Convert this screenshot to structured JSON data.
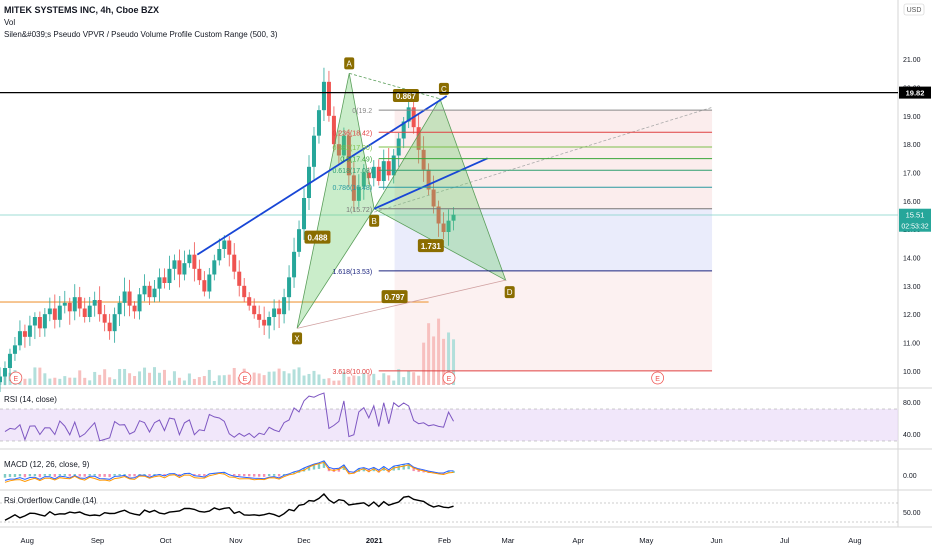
{
  "header": {
    "symbol_line": "MITEK SYSTEMS INC, 4h, Cboe BZX",
    "vol_label": "Vol",
    "indicator_line": "Silen&#039;s Pseudo VPVR / Pseudo Volume Profile Custom Range (500, 3)"
  },
  "currency_badge": "USD",
  "price_axis": {
    "ticks": [
      "21.00",
      "20.00",
      "19.00",
      "18.00",
      "17.00",
      "16.00",
      "15.00",
      "14.00",
      "13.00",
      "12.00",
      "11.00",
      "10.00"
    ],
    "last_price": "15.51",
    "countdown": "02:53:32",
    "level_badge": "19.82"
  },
  "time_axis": {
    "labels": [
      "Aug",
      "Sep",
      "Oct",
      "Nov",
      "Dec",
      "2021",
      "Feb",
      "Mar",
      "Apr",
      "May",
      "Jun",
      "Jul",
      "Aug"
    ]
  },
  "pattern_points": [
    "X",
    "A",
    "B",
    "C",
    "D"
  ],
  "ratio_labels": [
    "0.867",
    "0.488",
    "1.731",
    "0.797"
  ],
  "fib_labels": [
    "0(19.2",
    "0.236(18.42)",
    "0.382(17.90)",
    "0.5(17.49)",
    "0.618(17.08)",
    "0.786(16.48)",
    "1(15.72)",
    "1.618(13.53)",
    "3.618(10.00)"
  ],
  "earnings_marker": "E",
  "rsi": {
    "label": "RSI (14, close)",
    "ticks": [
      "80.00",
      "40.00"
    ]
  },
  "macd": {
    "label": "MACD (12, 26, close, 9)",
    "ticks": [
      "0.00"
    ]
  },
  "rsi_orderflow": {
    "label": "Rsi Orderflow Candle (14)",
    "ticks": [
      "50.00"
    ]
  },
  "colors": {
    "up": "#26a69a",
    "down": "#ef5350",
    "pattern_fill": "#66cc66",
    "trend_blue": "#1846d6",
    "rsi_band": "#e8d7f7",
    "price_badge": "#26a69a"
  },
  "chart_data": {
    "type": "candlestick",
    "title": "MITEK SYSTEMS INC, 4h, Cboe BZX",
    "ylabel": "USD",
    "ylim": [
      9.5,
      21.5
    ],
    "x_range": [
      "2020-07-20",
      "2021-08-20"
    ],
    "last_close": 15.51,
    "harmonic_pattern": {
      "points": [
        {
          "label": "X",
          "date": "2020-11-28",
          "price": 11.5
        },
        {
          "label": "A",
          "date": "2020-12-21",
          "price": 20.5
        },
        {
          "label": "B",
          "date": "2021-01-01",
          "price": 15.72
        },
        {
          "label": "C",
          "date": "2021-01-30",
          "price": 19.6
        },
        {
          "label": "D",
          "date": "2021-02-28",
          "price": 13.2
        }
      ],
      "ratios": [
        0.867,
        0.488,
        1.731,
        0.797
      ]
    },
    "fib_levels": [
      {
        "ratio": 0,
        "price": 19.2
      },
      {
        "ratio": 0.236,
        "price": 18.42
      },
      {
        "ratio": 0.382,
        "price": 17.9
      },
      {
        "ratio": 0.5,
        "price": 17.49
      },
      {
        "ratio": 0.618,
        "price": 17.08
      },
      {
        "ratio": 0.786,
        "price": 16.48
      },
      {
        "ratio": 1,
        "price": 15.72
      },
      {
        "ratio": 1.618,
        "price": 13.53
      },
      {
        "ratio": 3.618,
        "price": 10.0
      }
    ],
    "horizontal_levels": [
      19.82,
      12.4
    ],
    "closes": [
      9.8,
      10.1,
      10.6,
      10.9,
      11.4,
      11.2,
      11.6,
      11.9,
      11.5,
      12.0,
      12.2,
      11.8,
      12.3,
      12.4,
      12.1,
      12.6,
      12.2,
      11.9,
      12.3,
      12.5,
      12.0,
      11.7,
      11.4,
      12.0,
      12.4,
      12.8,
      12.3,
      12.1,
      12.7,
      13.0,
      12.6,
      12.9,
      13.3,
      13.1,
      13.6,
      13.9,
      13.4,
      13.8,
      14.1,
      13.6,
      13.2,
      12.8,
      13.4,
      13.9,
      14.3,
      14.6,
      14.1,
      13.5,
      13.0,
      12.6,
      12.3,
      12.0,
      11.8,
      11.6,
      11.9,
      12.2,
      12.0,
      12.6,
      13.3,
      14.2,
      15.0,
      16.1,
      17.2,
      18.3,
      19.2,
      20.2,
      19.0,
      18.0,
      17.6,
      18.3,
      16.9,
      16.0,
      16.5,
      17.0,
      16.8,
      17.2,
      16.7,
      17.4,
      16.9,
      17.6,
      18.2,
      18.8,
      19.3,
      18.6,
      17.8,
      17.1,
      16.4,
      15.8,
      15.2,
      14.9,
      15.3,
      15.51
    ]
  }
}
